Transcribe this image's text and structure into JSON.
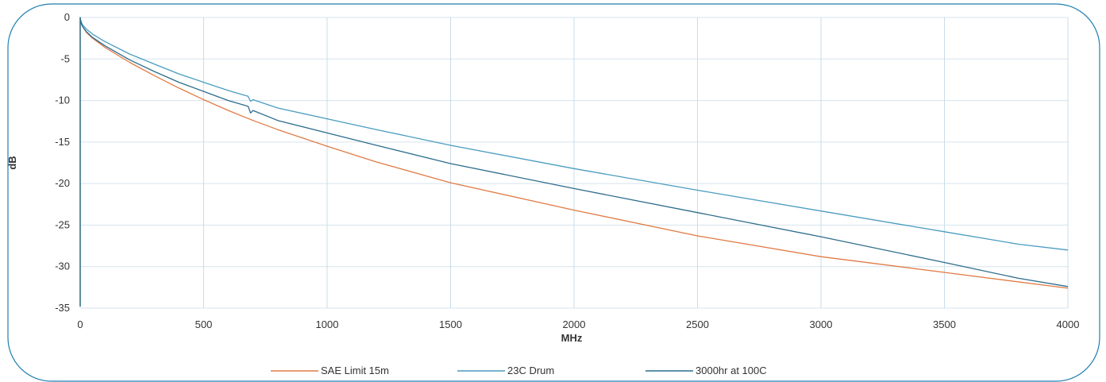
{
  "chart_data": {
    "type": "line",
    "title": "",
    "xlabel": "MHz",
    "ylabel": "dB",
    "xlim": [
      0,
      4000
    ],
    "ylim": [
      -35,
      0
    ],
    "xticks": [
      "0",
      "500",
      "1000",
      "1500",
      "2000",
      "2500",
      "3000",
      "3500",
      "4000"
    ],
    "yticks": [
      "0",
      "-5",
      "-10",
      "-15",
      "-20",
      "-25",
      "-30",
      "-35"
    ],
    "grid": true,
    "legend_position": "bottom",
    "series": [
      {
        "name": "SAE Limit 15m",
        "color": "#e07b45",
        "x": [
          1,
          5,
          10,
          25,
          50,
          100,
          200,
          300,
          400,
          500,
          600,
          700,
          800,
          1000,
          1200,
          1500,
          2000,
          2500,
          3000,
          3500,
          4000
        ],
        "y": [
          -0.3,
          -0.8,
          -1.1,
          -1.8,
          -2.5,
          -3.6,
          -5.4,
          -7.0,
          -8.5,
          -9.9,
          -11.2,
          -12.4,
          -13.5,
          -15.5,
          -17.4,
          -19.9,
          -23.2,
          -26.3,
          -28.8,
          -30.7,
          -32.6
        ]
      },
      {
        "name": "23C Drum",
        "color": "#4a9cc0",
        "x": [
          1,
          5,
          10,
          25,
          50,
          100,
          200,
          300,
          400,
          500,
          600,
          680,
          690,
          700,
          800,
          1000,
          1200,
          1500,
          2000,
          2500,
          3000,
          3500,
          3800,
          4000
        ],
        "y": [
          -0.2,
          -0.6,
          -0.9,
          -1.4,
          -2.0,
          -2.9,
          -4.4,
          -5.6,
          -6.8,
          -7.8,
          -8.8,
          -9.5,
          -10.1,
          -9.9,
          -10.9,
          -12.2,
          -13.5,
          -15.4,
          -18.2,
          -20.8,
          -23.3,
          -25.8,
          -27.3,
          -28.0
        ]
      },
      {
        "name": "3000hr at 100C",
        "color": "#2d6d8c",
        "x": [
          1,
          5,
          10,
          25,
          50,
          100,
          200,
          300,
          400,
          500,
          600,
          680,
          690,
          700,
          800,
          1000,
          1200,
          1500,
          2000,
          2500,
          3000,
          3500,
          3800,
          4000
        ],
        "y": [
          -0.3,
          -0.8,
          -1.1,
          -1.7,
          -2.4,
          -3.4,
          -5.1,
          -6.5,
          -7.8,
          -8.9,
          -10.0,
          -10.7,
          -11.5,
          -11.2,
          -12.4,
          -13.9,
          -15.4,
          -17.6,
          -20.6,
          -23.5,
          -26.4,
          -29.5,
          -31.4,
          -32.4
        ]
      }
    ]
  }
}
